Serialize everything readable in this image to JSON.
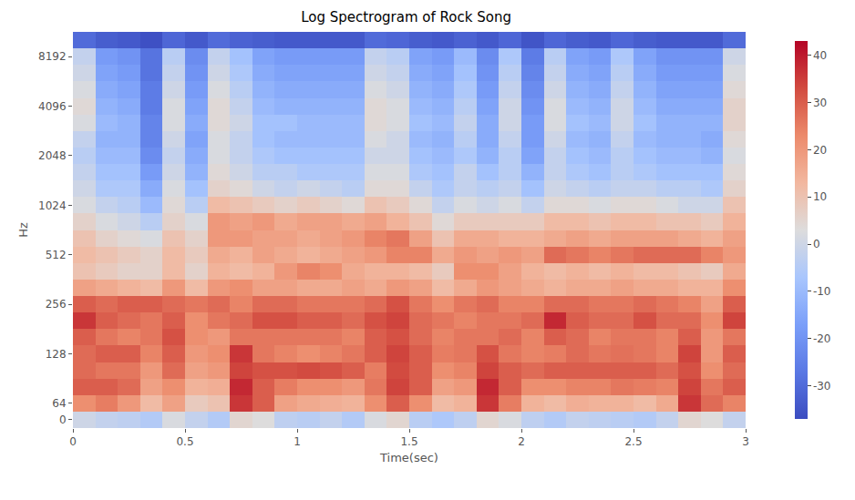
{
  "chart_data": {
    "type": "heatmap",
    "title": "Log Spectrogram of Rock Song",
    "x_label": "Time(sec)",
    "y_label": "Hz",
    "color": "coolwarm",
    "xlim": [
      0,
      3
    ],
    "xticks": [
      0,
      0.5,
      1,
      1.5,
      2,
      2.5,
      3
    ],
    "zlim": [
      -37,
      43
    ],
    "zticks": [
      -30,
      -20,
      -10,
      0,
      10,
      20,
      30,
      40
    ],
    "x": [
      0.05,
      0.15,
      0.25,
      0.35,
      0.45,
      0.55,
      0.65,
      0.75,
      0.85,
      0.95,
      1.05,
      1.15,
      1.25,
      1.35,
      1.45,
      1.55,
      1.65,
      1.75,
      1.85,
      1.95,
      2.05,
      2.15,
      2.25,
      2.35,
      2.45,
      2.55,
      2.65,
      2.75,
      2.85,
      2.95
    ],
    "categories": [
      0,
      64,
      null,
      null,
      128,
      null,
      null,
      256,
      null,
      null,
      512,
      null,
      null,
      1024,
      null,
      null,
      2048,
      null,
      null,
      4096,
      null,
      null,
      8192,
      null
    ],
    "values": [
      [
        0,
        -2,
        -3,
        -5,
        2,
        -2,
        -5,
        5,
        3,
        -3,
        -4,
        -2,
        -5,
        2,
        5,
        -4,
        -6,
        -3,
        5,
        2,
        -3,
        -5,
        -2,
        -3,
        -4,
        -5,
        -2,
        5,
        3,
        -2
      ],
      [
        22,
        25,
        20,
        12,
        18,
        8,
        10,
        36,
        30,
        18,
        16,
        15,
        14,
        22,
        30,
        22,
        12,
        14,
        36,
        25,
        14,
        12,
        15,
        14,
        14,
        12,
        16,
        36,
        28,
        24
      ],
      [
        30,
        30,
        28,
        18,
        22,
        14,
        15,
        38,
        30,
        25,
        22,
        22,
        20,
        26,
        34,
        30,
        18,
        20,
        38,
        30,
        22,
        22,
        24,
        24,
        26,
        25,
        24,
        34,
        26,
        30
      ],
      [
        28,
        26,
        26,
        20,
        28,
        18,
        20,
        34,
        32,
        32,
        33,
        32,
        30,
        25,
        33,
        30,
        22,
        24,
        34,
        30,
        28,
        30,
        30,
        30,
        30,
        30,
        28,
        32,
        22,
        28
      ],
      [
        28,
        30,
        30,
        24,
        30,
        20,
        22,
        36,
        26,
        24,
        22,
        24,
        26,
        30,
        34,
        30,
        25,
        26,
        32,
        26,
        24,
        25,
        28,
        26,
        27,
        26,
        24,
        34,
        20,
        30
      ],
      [
        30,
        26,
        24,
        26,
        32,
        22,
        20,
        26,
        26,
        26,
        26,
        26,
        24,
        30,
        32,
        28,
        24,
        26,
        26,
        28,
        24,
        30,
        28,
        24,
        26,
        26,
        24,
        30,
        20,
        26
      ],
      [
        36,
        30,
        28,
        26,
        30,
        22,
        26,
        28,
        32,
        32,
        30,
        30,
        28,
        32,
        34,
        28,
        26,
        24,
        26,
        26,
        28,
        38,
        30,
        28,
        28,
        32,
        28,
        28,
        22,
        34
      ],
      [
        30,
        28,
        30,
        30,
        28,
        26,
        28,
        24,
        28,
        28,
        26,
        26,
        26,
        28,
        32,
        26,
        22,
        26,
        28,
        24,
        24,
        28,
        28,
        26,
        26,
        28,
        26,
        24,
        18,
        30
      ],
      [
        18,
        16,
        14,
        12,
        20,
        12,
        20,
        22,
        18,
        18,
        16,
        16,
        18,
        16,
        20,
        18,
        12,
        16,
        20,
        18,
        16,
        14,
        16,
        16,
        18,
        16,
        16,
        14,
        14,
        22
      ],
      [
        10,
        8,
        6,
        6,
        12,
        6,
        14,
        12,
        14,
        20,
        24,
        22,
        16,
        14,
        14,
        12,
        8,
        22,
        22,
        18,
        14,
        12,
        14,
        12,
        14,
        12,
        12,
        10,
        8,
        16
      ],
      [
        12,
        10,
        8,
        6,
        12,
        8,
        16,
        14,
        18,
        16,
        14,
        16,
        18,
        20,
        24,
        24,
        16,
        20,
        18,
        20,
        18,
        28,
        26,
        24,
        26,
        28,
        28,
        28,
        24,
        20
      ],
      [
        10,
        6,
        4,
        2,
        10,
        6,
        20,
        20,
        18,
        18,
        16,
        18,
        20,
        24,
        26,
        18,
        10,
        16,
        16,
        14,
        14,
        16,
        18,
        16,
        18,
        18,
        18,
        16,
        14,
        18
      ],
      [
        6,
        2,
        0,
        -4,
        6,
        2,
        20,
        18,
        20,
        16,
        18,
        18,
        16,
        18,
        14,
        10,
        4,
        8,
        8,
        8,
        8,
        12,
        12,
        10,
        12,
        12,
        10,
        10,
        8,
        14
      ],
      [
        2,
        -2,
        -4,
        -10,
        4,
        -4,
        12,
        10,
        8,
        6,
        8,
        6,
        4,
        10,
        8,
        4,
        -2,
        2,
        0,
        2,
        -2,
        4,
        4,
        2,
        4,
        4,
        2,
        0,
        0,
        10
      ],
      [
        0,
        -6,
        -6,
        -14,
        2,
        -8,
        6,
        4,
        0,
        -2,
        0,
        -2,
        -4,
        4,
        4,
        -2,
        -6,
        -2,
        -4,
        -2,
        -8,
        0,
        -2,
        -4,
        -2,
        -2,
        -4,
        -4,
        -6,
        6
      ],
      [
        -2,
        -8,
        -8,
        -18,
        0,
        -12,
        4,
        0,
        -4,
        -4,
        -6,
        -6,
        -6,
        2,
        2,
        -6,
        -8,
        -2,
        -8,
        -4,
        -12,
        -2,
        -6,
        -8,
        -4,
        -6,
        -8,
        -8,
        -8,
        4
      ],
      [
        -4,
        -10,
        -10,
        -22,
        -2,
        -14,
        2,
        -2,
        -6,
        -8,
        -8,
        -8,
        -8,
        0,
        0,
        -8,
        -10,
        -6,
        -12,
        -4,
        -16,
        -2,
        -8,
        -10,
        -4,
        -8,
        -10,
        -10,
        -12,
        2
      ],
      [
        -2,
        -12,
        -12,
        -24,
        0,
        -16,
        2,
        -2,
        -8,
        -10,
        -10,
        -10,
        -10,
        2,
        0,
        -10,
        -12,
        -4,
        -14,
        -2,
        -18,
        0,
        -10,
        -12,
        -2,
        -10,
        -12,
        -12,
        -14,
        4
      ],
      [
        2,
        -10,
        -12,
        -24,
        2,
        -14,
        4,
        0,
        -8,
        -8,
        -10,
        -10,
        -10,
        4,
        2,
        -8,
        -10,
        -2,
        -14,
        0,
        -18,
        2,
        -8,
        -10,
        0,
        -8,
        -12,
        -12,
        -12,
        6
      ],
      [
        4,
        -12,
        -14,
        -26,
        2,
        -16,
        4,
        -2,
        -10,
        -12,
        -12,
        -12,
        -12,
        4,
        2,
        -10,
        -12,
        -4,
        -16,
        0,
        -20,
        2,
        -10,
        -12,
        0,
        -10,
        -14,
        -14,
        -14,
        6
      ],
      [
        2,
        -14,
        -16,
        -26,
        0,
        -18,
        2,
        -4,
        -12,
        -14,
        -14,
        -14,
        -14,
        2,
        0,
        -12,
        -14,
        -6,
        -18,
        -2,
        -22,
        0,
        -12,
        -14,
        -2,
        -12,
        -16,
        -16,
        -16,
        4
      ],
      [
        0,
        -16,
        -18,
        -28,
        -2,
        -20,
        0,
        -6,
        -14,
        -16,
        -16,
        -16,
        -16,
        0,
        -2,
        -14,
        -16,
        -8,
        -20,
        -4,
        -24,
        -2,
        -14,
        -16,
        -4,
        -14,
        -18,
        -18,
        -18,
        2
      ],
      [
        -2,
        -18,
        -20,
        -28,
        -4,
        -22,
        -2,
        -8,
        -16,
        -18,
        -18,
        -18,
        -18,
        -2,
        -4,
        -16,
        -18,
        -10,
        -22,
        -6,
        -26,
        -4,
        -16,
        -18,
        -6,
        -16,
        -20,
        -20,
        -20,
        0
      ],
      [
        -30,
        -33,
        -34,
        -36,
        -31,
        -34,
        -30,
        -32,
        -33,
        -34,
        -34,
        -34,
        -34,
        -30,
        -31,
        -33,
        -34,
        -32,
        -34,
        -31,
        -35,
        -31,
        -33,
        -34,
        -31,
        -33,
        -34,
        -34,
        -34,
        -30
      ]
    ]
  }
}
